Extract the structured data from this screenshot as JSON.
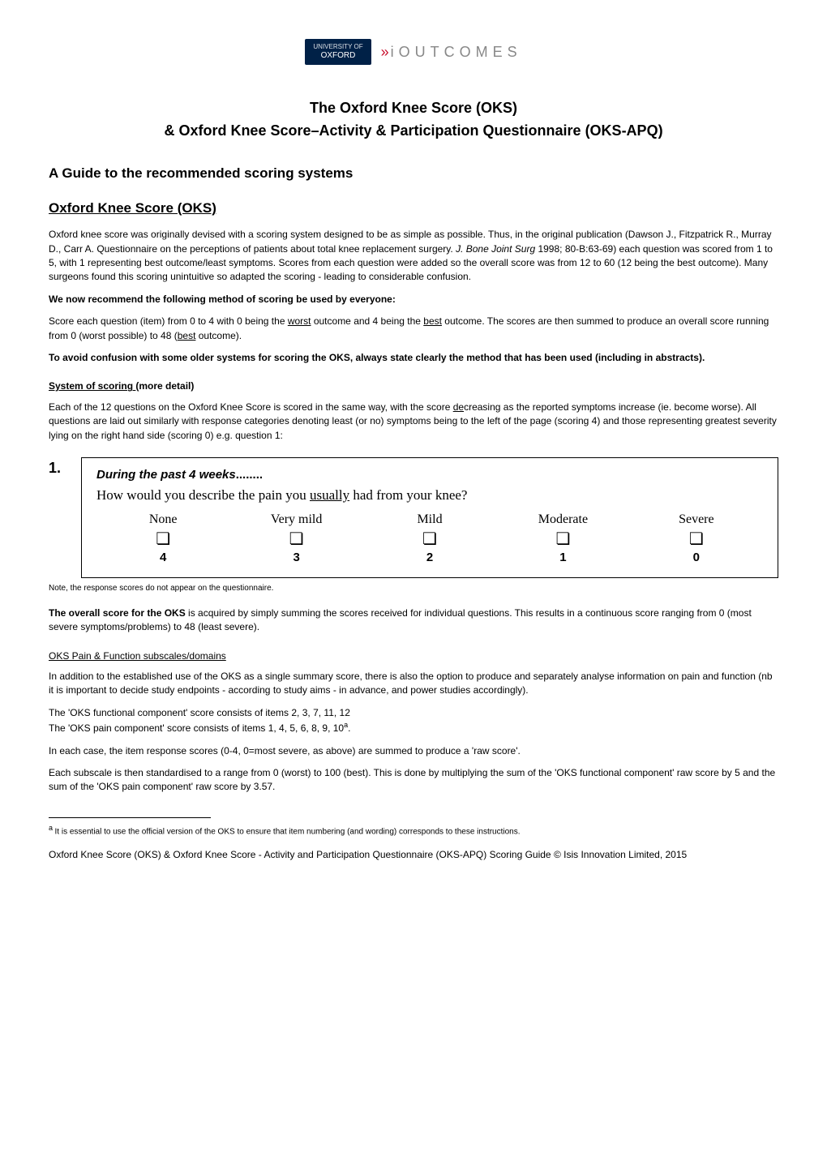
{
  "logo": {
    "shield_top": "UNIVERSITY OF",
    "shield_bottom": "OXFORD",
    "brand": "iOUTCOMES",
    "chevron": "»"
  },
  "title": "The Oxford Knee Score (OKS)",
  "subtitle": "& Oxford Knee Score–Activity & Participation Questionnaire (OKS-APQ)",
  "guide_heading": "A Guide to the recommended scoring systems",
  "section_heading": "Oxford Knee Score (OKS)",
  "intro_p1_a": "Oxford knee score was originally devised with a scoring system designed to be as simple as possible. Thus, in the original publication (Dawson J., Fitzpatrick R., Murray D., Carr A. Questionnaire on the perceptions of patients about total knee replacement surgery. ",
  "intro_p1_i": "J. Bone Joint Surg",
  "intro_p1_b": " 1998; 80-B:63-69) each question was scored from 1 to 5, with 1 representing best outcome/least symptoms.  Scores from each question were added so the overall score was from 12 to 60 (12 being the best outcome).  Many surgeons found this scoring unintuitive so adapted the scoring - leading to considerable confusion.",
  "rec_bold": "We now recommend the following method of scoring be used by everyone:",
  "rec_p_a": "Score each question (item) from 0 to 4 with 0 being the ",
  "rec_p_u1": "worst",
  "rec_p_b": " outcome and 4 being the ",
  "rec_p_u2": "best",
  "rec_p_c": " outcome.  The scores are then summed to produce an overall score running from 0 (worst possible) to 48 (",
  "rec_p_u3": "best",
  "rec_p_d": " outcome).",
  "avoid_bold": "To avoid confusion with some older systems for scoring the OKS, always state clearly the method that has been used (including in abstracts).",
  "sys_head_u": "System of scoring ",
  "sys_head_rest": "(more detail)",
  "sys_p_a": "Each of the 12 questions on the Oxford Knee Score is scored in the same way, with the score ",
  "sys_p_u": "de",
  "sys_p_b": "creasing as the reported symptoms increase (ie. become worse). All questions are laid out similarly with response categories denoting least (or no) symptoms being to the left of the page (scoring 4) and those representing greatest severity lying on the right hand side (scoring 0) e.g. question 1:",
  "question": {
    "number": "1.",
    "lead_a": "During the past 4 weeks",
    "lead_b": "........",
    "text_a": "How would you describe the pain you ",
    "text_u": "usually",
    "text_b": " had from your knee?",
    "options": [
      {
        "label": "None",
        "score": "4"
      },
      {
        "label": "Very mild",
        "score": "3"
      },
      {
        "label": "Mild",
        "score": "2"
      },
      {
        "label": "Moderate",
        "score": "1"
      },
      {
        "label": "Severe",
        "score": "0"
      }
    ],
    "box_glyph": "❏"
  },
  "note": "Note, the response scores do not appear on the questionnaire.",
  "overall_bold": "The overall score for the OKS",
  "overall_rest": " is acquired by simply summing the scores received for individual questions. This results in a continuous score ranging from 0 (most severe symptoms/problems) to 48 (least severe).",
  "subscales_head": "OKS Pain & Function subscales/domains",
  "subscales_p1": "In addition to the established use of the OKS as a single summary score, there is also the option to produce and separately analyse information on pain and function (nb it is important to decide study endpoints - according to study aims - in advance, and power studies accordingly).",
  "subscales_p2": "The 'OKS functional component' score consists of items 2, 3, 7, 11, 12",
  "subscales_p3_a": "The 'OKS pain component' score consists of items 1, 4, 5, 6, 8, 9, 10",
  "subscales_p3_sup": "a",
  "subscales_p3_b": ".",
  "raw_p": "In each case, the item response scores (0-4, 0=most severe, as above) are summed to produce a 'raw score'.",
  "std_p": "Each subscale is then standardised to a range from 0 (worst) to 100 (best). This is done by multiplying the sum of the 'OKS functional component' raw score by 5 and the sum of the 'OKS pain component' raw score by 3.57.",
  "footnote_sup": "a ",
  "footnote": "It is essential to use the official version of the OKS to ensure that item numbering (and wording) corresponds to these instructions.",
  "copyright": "Oxford Knee Score (OKS) & Oxford Knee Score - Activity and Participation Questionnaire (OKS-APQ) Scoring Guide © Isis Innovation Limited, 2015"
}
